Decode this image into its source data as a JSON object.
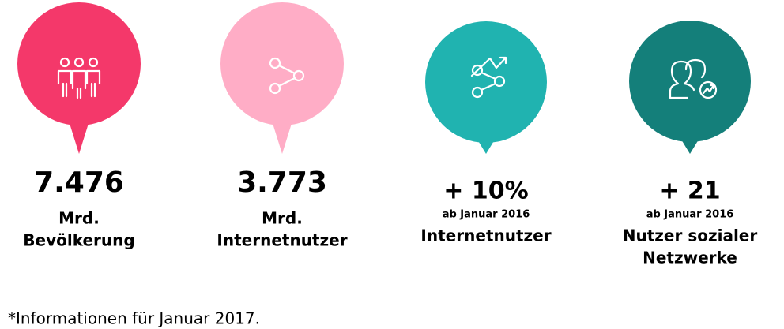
{
  "items": [
    {
      "value": "7.476",
      "lines": [
        "Mrd.",
        "Bevölkerung"
      ]
    },
    {
      "value": "3.773",
      "lines": [
        "Mrd.",
        "Internetnutzer"
      ]
    },
    {
      "value": "+ 10%",
      "note": "ab Januar 2016",
      "lines": [
        "Internetnutzer"
      ]
    },
    {
      "value": "+ 21",
      "note": "ab Januar 2016",
      "lines": [
        "Nutzer sozialer",
        "Netzwerke"
      ]
    }
  ],
  "footnote": "*Informationen für Januar 2017."
}
